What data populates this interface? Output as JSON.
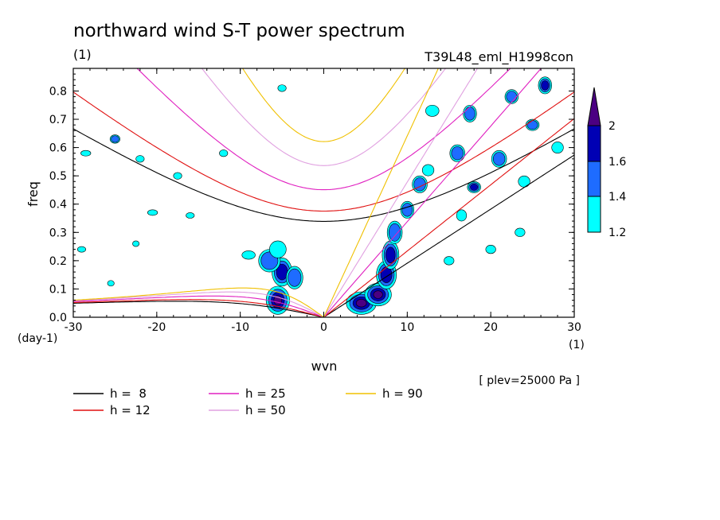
{
  "chart_data": {
    "type": "contour",
    "title": "northward wind S-T power spectrum",
    "unit_label": "(1)",
    "experiment": "T39L48_eml_H1998con",
    "xlabel": "wvn",
    "ylabel": "freq",
    "x_unit": "(1)",
    "y_unit": "(day-1)",
    "level_note": "[ plev=25000 Pa ]",
    "xlim": [
      -30,
      30
    ],
    "ylim": [
      0,
      0.88
    ],
    "xticks": [
      "-30",
      "-20",
      "-10",
      "0",
      "10",
      "20",
      "30"
    ],
    "xtick_values": [
      -30,
      -20,
      -10,
      0,
      10,
      20,
      30
    ],
    "yticks": [
      "0.0",
      "0.1",
      "0.2",
      "0.3",
      "0.4",
      "0.5",
      "0.6",
      "0.7",
      "0.8"
    ],
    "ytick_values": [
      0,
      0.1,
      0.2,
      0.3,
      0.4,
      0.5,
      0.6,
      0.7,
      0.8
    ],
    "colorbar": {
      "levels": [
        1.2,
        1.4,
        1.6,
        2
      ],
      "labels": [
        "2",
        "1.6",
        "1.4",
        "1.2"
      ],
      "colors": [
        "#00ffff",
        "#1e6cff",
        "#0000b4",
        "#4b0082"
      ]
    },
    "dispersion_curves": [
      {
        "name": "h =  8",
        "h": 8,
        "color": "#000000"
      },
      {
        "name": "h = 12",
        "h": 12,
        "color": "#e01010"
      },
      {
        "name": "h = 25",
        "h": 25,
        "color": "#e020c0"
      },
      {
        "name": "h = 50",
        "h": 50,
        "color": "#e0a0e0"
      },
      {
        "name": "h = 90",
        "h": 90,
        "color": "#f0c000"
      }
    ],
    "power_blobs": [
      {
        "x": -5.5,
        "y": 0.06,
        "rx": 1.4,
        "ry": 0.05,
        "level": 4
      },
      {
        "x": -5.0,
        "y": 0.16,
        "rx": 1.2,
        "ry": 0.05,
        "level": 3
      },
      {
        "x": -6.5,
        "y": 0.2,
        "rx": 1.3,
        "ry": 0.04,
        "level": 2
      },
      {
        "x": -3.5,
        "y": 0.14,
        "rx": 1.0,
        "ry": 0.04,
        "level": 2
      },
      {
        "x": -5.5,
        "y": 0.24,
        "rx": 1.0,
        "ry": 0.03,
        "level": 1
      },
      {
        "x": -9.0,
        "y": 0.22,
        "rx": 0.8,
        "ry": 0.015,
        "level": 1
      },
      {
        "x": 4.5,
        "y": 0.05,
        "rx": 1.8,
        "ry": 0.04,
        "level": 4
      },
      {
        "x": 6.5,
        "y": 0.08,
        "rx": 1.6,
        "ry": 0.04,
        "level": 4
      },
      {
        "x": 7.5,
        "y": 0.15,
        "rx": 1.2,
        "ry": 0.05,
        "level": 3
      },
      {
        "x": 8.0,
        "y": 0.22,
        "rx": 1.0,
        "ry": 0.05,
        "level": 3
      },
      {
        "x": 8.5,
        "y": 0.3,
        "rx": 0.9,
        "ry": 0.04,
        "level": 2
      },
      {
        "x": 10.0,
        "y": 0.38,
        "rx": 0.8,
        "ry": 0.03,
        "level": 2
      },
      {
        "x": 11.5,
        "y": 0.47,
        "rx": 0.9,
        "ry": 0.03,
        "level": 2
      },
      {
        "x": 12.5,
        "y": 0.52,
        "rx": 0.7,
        "ry": 0.02,
        "level": 1
      },
      {
        "x": 13.0,
        "y": 0.73,
        "rx": 0.8,
        "ry": 0.02,
        "level": 1
      },
      {
        "x": 16.0,
        "y": 0.58,
        "rx": 0.9,
        "ry": 0.03,
        "level": 2
      },
      {
        "x": 17.5,
        "y": 0.72,
        "rx": 0.8,
        "ry": 0.03,
        "level": 2
      },
      {
        "x": 18.0,
        "y": 0.46,
        "rx": 0.8,
        "ry": 0.02,
        "level": 3
      },
      {
        "x": 21.0,
        "y": 0.56,
        "rx": 0.9,
        "ry": 0.03,
        "level": 2
      },
      {
        "x": 22.5,
        "y": 0.78,
        "rx": 0.8,
        "ry": 0.025,
        "level": 2
      },
      {
        "x": 24.0,
        "y": 0.48,
        "rx": 0.7,
        "ry": 0.02,
        "level": 1
      },
      {
        "x": 25.0,
        "y": 0.68,
        "rx": 0.8,
        "ry": 0.02,
        "level": 2
      },
      {
        "x": 26.5,
        "y": 0.82,
        "rx": 0.8,
        "ry": 0.03,
        "level": 3
      },
      {
        "x": 28.0,
        "y": 0.6,
        "rx": 0.7,
        "ry": 0.02,
        "level": 1
      },
      {
        "x": 23.5,
        "y": 0.3,
        "rx": 0.6,
        "ry": 0.015,
        "level": 1
      },
      {
        "x": 20.0,
        "y": 0.24,
        "rx": 0.6,
        "ry": 0.015,
        "level": 1
      },
      {
        "x": 16.5,
        "y": 0.36,
        "rx": 0.6,
        "ry": 0.02,
        "level": 1
      },
      {
        "x": 15.0,
        "y": 0.2,
        "rx": 0.6,
        "ry": 0.015,
        "level": 1
      },
      {
        "x": -25.0,
        "y": 0.63,
        "rx": 0.6,
        "ry": 0.015,
        "level": 2
      },
      {
        "x": -28.5,
        "y": 0.58,
        "rx": 0.6,
        "ry": 0.01,
        "level": 1
      },
      {
        "x": -22.0,
        "y": 0.56,
        "rx": 0.5,
        "ry": 0.012,
        "level": 1
      },
      {
        "x": -20.5,
        "y": 0.37,
        "rx": 0.6,
        "ry": 0.01,
        "level": 1
      },
      {
        "x": -16.0,
        "y": 0.36,
        "rx": 0.5,
        "ry": 0.01,
        "level": 1
      },
      {
        "x": -17.5,
        "y": 0.5,
        "rx": 0.5,
        "ry": 0.012,
        "level": 1
      },
      {
        "x": -12.0,
        "y": 0.58,
        "rx": 0.5,
        "ry": 0.012,
        "level": 1
      },
      {
        "x": -5.0,
        "y": 0.81,
        "rx": 0.5,
        "ry": 0.012,
        "level": 1
      },
      {
        "x": -29.0,
        "y": 0.24,
        "rx": 0.5,
        "ry": 0.01,
        "level": 1
      },
      {
        "x": -22.5,
        "y": 0.26,
        "rx": 0.4,
        "ry": 0.01,
        "level": 1
      },
      {
        "x": -25.5,
        "y": 0.12,
        "rx": 0.4,
        "ry": 0.01,
        "level": 1
      }
    ]
  },
  "colors": {
    "background": "#ffffff",
    "axis": "#000000"
  }
}
